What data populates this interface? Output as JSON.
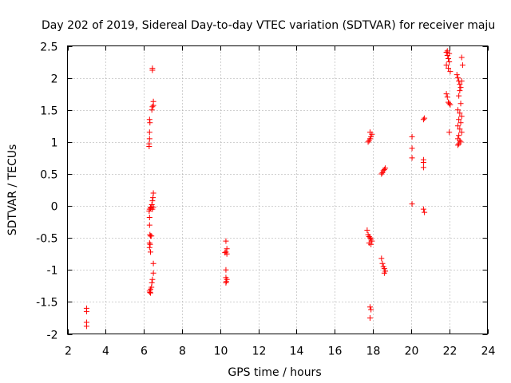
{
  "chart_data": {
    "type": "scatter",
    "title": "Day 202 of 2019, Sidereal Day-to-day VTEC variation (SDTVAR) for receiver maju",
    "xlabel": "GPS time / hours",
    "ylabel": "SDTVAR / TECUs",
    "xlim": [
      2,
      24
    ],
    "ylim": [
      -2,
      2.5
    ],
    "xticks": [
      2,
      4,
      6,
      8,
      10,
      12,
      14,
      16,
      18,
      20,
      22,
      24
    ],
    "yticks": [
      -2,
      -1.5,
      -1,
      -0.5,
      0,
      0.5,
      1,
      1.5,
      2,
      2.5
    ],
    "xtick_labels": [
      "2",
      "4",
      "6",
      "8",
      "10",
      "12",
      "14",
      "16",
      "18",
      "20",
      "22",
      "24"
    ],
    "ytick_labels": [
      "-2",
      "-1.5",
      "-1",
      "-0.5",
      "0",
      "0.5",
      "1",
      "1.5",
      "2",
      "2.5"
    ],
    "grid": true,
    "marker": "+",
    "color": "#ff0000",
    "series": [
      {
        "name": "SDTVAR",
        "points": [
          [
            3.0,
            -1.6
          ],
          [
            3.0,
            -1.65
          ],
          [
            3.0,
            -1.82
          ],
          [
            3.0,
            -1.88
          ],
          [
            6.3,
            1.35
          ],
          [
            6.32,
            1.3
          ],
          [
            6.3,
            1.15
          ],
          [
            6.3,
            1.05
          ],
          [
            6.28,
            0.97
          ],
          [
            6.28,
            0.93
          ],
          [
            6.45,
            2.15
          ],
          [
            6.45,
            2.12
          ],
          [
            6.5,
            1.63
          ],
          [
            6.5,
            1.57
          ],
          [
            6.45,
            1.55
          ],
          [
            6.42,
            1.5
          ],
          [
            6.5,
            0.2
          ],
          [
            6.48,
            0.13
          ],
          [
            6.45,
            0.08
          ],
          [
            6.42,
            0.02
          ],
          [
            6.4,
            -0.02
          ],
          [
            6.45,
            -0.05
          ],
          [
            6.35,
            -0.03
          ],
          [
            6.5,
            -0.02
          ],
          [
            6.3,
            -0.05
          ],
          [
            6.28,
            -0.08
          ],
          [
            6.3,
            -0.18
          ],
          [
            6.3,
            -0.3
          ],
          [
            6.32,
            -0.45
          ],
          [
            6.35,
            -0.47
          ],
          [
            6.4,
            -0.47
          ],
          [
            6.3,
            -0.58
          ],
          [
            6.33,
            -0.6
          ],
          [
            6.3,
            -0.65
          ],
          [
            6.35,
            -0.72
          ],
          [
            6.5,
            -0.9
          ],
          [
            6.5,
            -1.05
          ],
          [
            6.45,
            -1.15
          ],
          [
            6.42,
            -1.2
          ],
          [
            6.4,
            -1.27
          ],
          [
            6.35,
            -1.3
          ],
          [
            6.3,
            -1.33
          ],
          [
            6.32,
            -1.35
          ],
          [
            6.35,
            -1.36
          ],
          [
            10.3,
            -0.55
          ],
          [
            10.35,
            -0.67
          ],
          [
            10.3,
            -0.72
          ],
          [
            10.25,
            -0.73
          ],
          [
            10.35,
            -0.75
          ],
          [
            10.3,
            -1.0
          ],
          [
            10.3,
            -1.12
          ],
          [
            10.35,
            -1.15
          ],
          [
            10.32,
            -1.18
          ],
          [
            10.3,
            -1.2
          ],
          [
            17.75,
            1.0
          ],
          [
            17.8,
            1.02
          ],
          [
            17.85,
            1.05
          ],
          [
            17.9,
            1.08
          ],
          [
            17.95,
            1.12
          ],
          [
            17.85,
            1.15
          ],
          [
            17.7,
            -0.38
          ],
          [
            17.75,
            -0.45
          ],
          [
            17.8,
            -0.48
          ],
          [
            17.85,
            -0.5
          ],
          [
            17.9,
            -0.52
          ],
          [
            17.95,
            -0.55
          ],
          [
            17.8,
            -0.58
          ],
          [
            17.9,
            -0.6
          ],
          [
            17.85,
            -1.58
          ],
          [
            17.9,
            -1.62
          ],
          [
            17.85,
            -1.75
          ],
          [
            18.45,
            0.5
          ],
          [
            18.5,
            0.52
          ],
          [
            18.55,
            0.55
          ],
          [
            18.6,
            0.57
          ],
          [
            18.65,
            0.59
          ],
          [
            18.45,
            -0.82
          ],
          [
            18.5,
            -0.9
          ],
          [
            18.55,
            -0.95
          ],
          [
            18.6,
            -0.98
          ],
          [
            18.65,
            -1.02
          ],
          [
            18.6,
            -1.05
          ],
          [
            20.05,
            1.08
          ],
          [
            20.05,
            0.9
          ],
          [
            20.05,
            0.75
          ],
          [
            20.05,
            0.03
          ],
          [
            20.65,
            1.35
          ],
          [
            20.7,
            1.37
          ],
          [
            20.65,
            0.72
          ],
          [
            20.65,
            0.68
          ],
          [
            20.65,
            0.6
          ],
          [
            20.65,
            -0.05
          ],
          [
            20.7,
            -0.1
          ],
          [
            21.85,
            2.4
          ],
          [
            21.9,
            2.35
          ],
          [
            21.95,
            2.3
          ],
          [
            22.0,
            2.25
          ],
          [
            21.85,
            2.2
          ],
          [
            21.95,
            2.15
          ],
          [
            22.05,
            2.1
          ],
          [
            21.9,
            2.42
          ],
          [
            22.0,
            2.38
          ],
          [
            21.85,
            1.75
          ],
          [
            21.9,
            1.7
          ],
          [
            21.95,
            1.62
          ],
          [
            22.0,
            1.6
          ],
          [
            22.05,
            1.58
          ],
          [
            22.0,
            1.15
          ],
          [
            22.4,
            2.05
          ],
          [
            22.45,
            2.0
          ],
          [
            22.5,
            1.95
          ],
          [
            22.55,
            1.9
          ],
          [
            22.6,
            1.85
          ],
          [
            22.65,
            1.95
          ],
          [
            22.7,
            2.2
          ],
          [
            22.65,
            2.32
          ],
          [
            22.55,
            1.8
          ],
          [
            22.5,
            1.72
          ],
          [
            22.6,
            1.6
          ],
          [
            22.45,
            1.5
          ],
          [
            22.55,
            1.45
          ],
          [
            22.65,
            1.4
          ],
          [
            22.5,
            1.35
          ],
          [
            22.6,
            1.3
          ],
          [
            22.45,
            1.25
          ],
          [
            22.55,
            1.2
          ],
          [
            22.65,
            1.15
          ],
          [
            22.5,
            1.1
          ],
          [
            22.45,
            1.05
          ],
          [
            22.55,
            1.02
          ],
          [
            22.6,
            1.0
          ],
          [
            22.5,
            0.97
          ],
          [
            22.45,
            0.95
          ]
        ]
      }
    ]
  }
}
